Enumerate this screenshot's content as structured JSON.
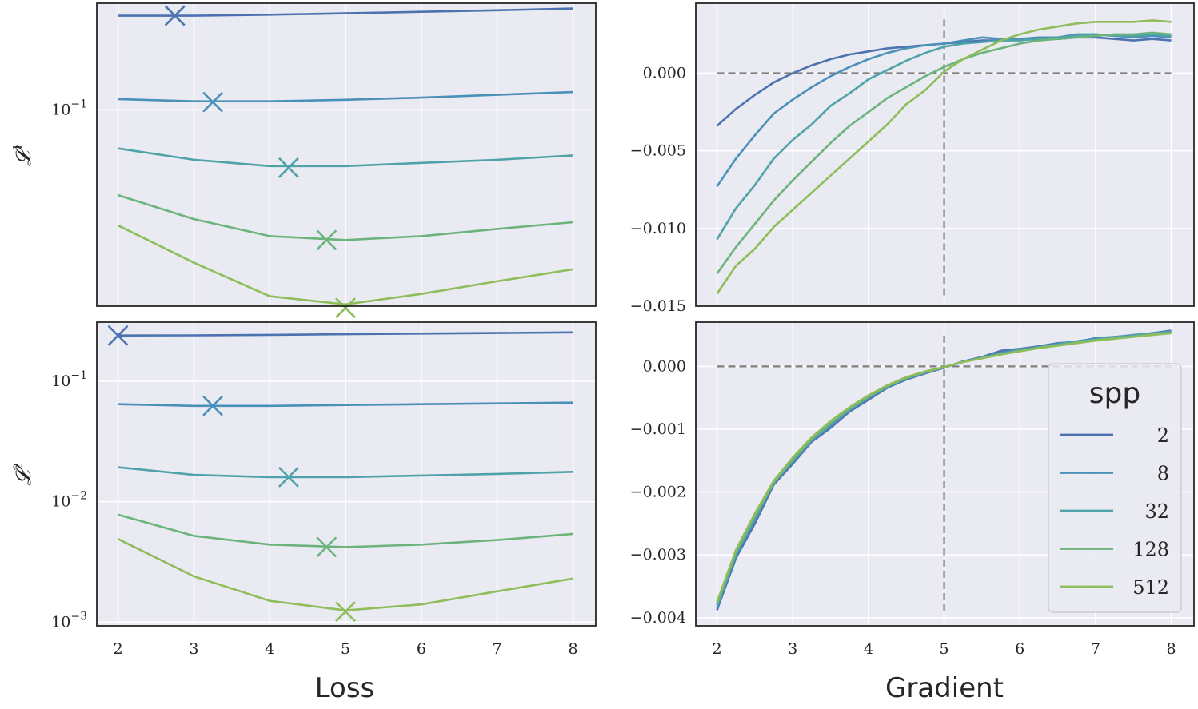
{
  "chart_data": [
    {
      "type": "line",
      "name": "top-left",
      "ylabel": "𝓛",
      "ylabel_sup": "1",
      "yscale": "log",
      "ylim": [
        0.0095,
        0.36
      ],
      "xlim": [
        1.72,
        8.3
      ],
      "xticks": [
        2,
        3,
        4,
        5,
        6,
        7,
        8
      ],
      "show_xticks": false,
      "yticks": [
        {
          "value": 0.1,
          "label": "10",
          "sup": "−1"
        }
      ],
      "x": [
        2,
        3,
        4,
        5,
        6,
        7,
        8
      ],
      "series": [
        {
          "name": "2",
          "values": [
            0.31,
            0.31,
            0.314,
            0.319,
            0.325,
            0.331,
            0.338
          ],
          "min": {
            "x": 2.75,
            "y": 0.31
          }
        },
        {
          "name": "8",
          "values": [
            0.114,
            0.111,
            0.111,
            0.113,
            0.116,
            0.12,
            0.124
          ],
          "min": {
            "x": 3.25,
            "y": 0.11
          }
        },
        {
          "name": "32",
          "values": [
            0.063,
            0.055,
            0.051,
            0.051,
            0.053,
            0.055,
            0.058
          ],
          "min": {
            "x": 4.25,
            "y": 0.05
          }
        },
        {
          "name": "128",
          "values": [
            0.036,
            0.027,
            0.022,
            0.021,
            0.022,
            0.024,
            0.026
          ],
          "min": {
            "x": 4.75,
            "y": 0.021
          }
        },
        {
          "name": "512",
          "values": [
            0.025,
            0.016,
            0.0107,
            0.0097,
            0.011,
            0.0128,
            0.0148
          ],
          "min": {
            "x": 5.0,
            "y": 0.0093
          }
        }
      ]
    },
    {
      "type": "line",
      "name": "top-right",
      "yscale": "linear",
      "ylim": [
        -0.015,
        0.0045
      ],
      "xlim": [
        1.72,
        8.3
      ],
      "xticks": [
        2,
        3,
        4,
        5,
        6,
        7,
        8
      ],
      "show_xticks": false,
      "yticks": [
        {
          "value": 0.0,
          "label": "0.000"
        },
        {
          "value": -0.005,
          "label": "−0.005"
        },
        {
          "value": -0.01,
          "label": "−0.010"
        },
        {
          "value": -0.015,
          "label": "−0.015"
        }
      ],
      "hline": 0,
      "vline": 5,
      "vline_range": [
        -0.0143,
        0.0035
      ],
      "x": [
        2,
        2.25,
        2.5,
        2.75,
        3,
        3.25,
        3.5,
        3.75,
        4,
        4.25,
        4.5,
        4.75,
        5,
        5.25,
        5.5,
        5.75,
        6,
        6.25,
        6.5,
        6.75,
        7,
        7.25,
        7.5,
        7.75,
        8
      ],
      "series": [
        {
          "name": "2",
          "values": [
            -0.0034,
            -0.0023,
            -0.0014,
            -0.0006,
            0.0,
            0.0005,
            0.0009,
            0.0012,
            0.0014,
            0.0016,
            0.0017,
            0.0018,
            0.0019,
            0.002,
            0.0021,
            0.0021,
            0.0022,
            0.0022,
            0.0022,
            0.0023,
            0.0023,
            0.0022,
            0.0021,
            0.0022,
            0.0021
          ]
        },
        {
          "name": "8",
          "values": [
            -0.0073,
            -0.0055,
            -0.004,
            -0.0026,
            -0.0017,
            -0.0009,
            -0.0002,
            0.0004,
            0.0009,
            0.0013,
            0.0016,
            0.0018,
            0.0019,
            0.0021,
            0.0023,
            0.0022,
            0.0022,
            0.0023,
            0.0023,
            0.0025,
            0.0025,
            0.0024,
            0.0023,
            0.0024,
            0.0023
          ]
        },
        {
          "name": "32",
          "values": [
            -0.0107,
            -0.0087,
            -0.0072,
            -0.0055,
            -0.0043,
            -0.0033,
            -0.0021,
            -0.0013,
            -0.0004,
            0.0002,
            0.0008,
            0.0013,
            0.0017,
            0.0019,
            0.002,
            0.0021,
            0.0021,
            0.0022,
            0.0023,
            0.0024,
            0.0025,
            0.0024,
            0.0024,
            0.0025,
            0.0024
          ]
        },
        {
          "name": "128",
          "values": [
            -0.0129,
            -0.0112,
            -0.0097,
            -0.0082,
            -0.0069,
            -0.0057,
            -0.0045,
            -0.0034,
            -0.0025,
            -0.0016,
            -0.0009,
            -0.0002,
            0.0004,
            0.0009,
            0.0013,
            0.0016,
            0.0019,
            0.0021,
            0.0022,
            0.0023,
            0.0024,
            0.0025,
            0.0025,
            0.0026,
            0.0025
          ]
        },
        {
          "name": "512",
          "values": [
            -0.0142,
            -0.0124,
            -0.0113,
            -0.0099,
            -0.0088,
            -0.0077,
            -0.0066,
            -0.0055,
            -0.0044,
            -0.0033,
            -0.002,
            -0.0011,
            0.0001,
            0.0009,
            0.0015,
            0.0021,
            0.0025,
            0.0028,
            0.003,
            0.0032,
            0.0033,
            0.0033,
            0.0033,
            0.0034,
            0.0033
          ]
        }
      ]
    },
    {
      "type": "line",
      "name": "bottom-left",
      "ylabel": "𝓛",
      "ylabel_sup": "2",
      "yscale": "log",
      "ylim": [
        0.00093,
        0.31
      ],
      "xlim": [
        1.72,
        8.3
      ],
      "xticks": [
        2,
        3,
        4,
        5,
        6,
        7,
        8
      ],
      "show_xticks": true,
      "yticks": [
        {
          "value": 0.1,
          "label": "10",
          "sup": "−1"
        },
        {
          "value": 0.01,
          "label": "10",
          "sup": "−2"
        },
        {
          "value": 0.001,
          "label": "10",
          "sup": "−3"
        }
      ],
      "x": [
        2,
        3,
        4,
        5,
        6,
        7,
        8
      ],
      "series": [
        {
          "name": "2",
          "values": [
            0.24,
            0.241,
            0.243,
            0.246,
            0.249,
            0.252,
            0.255
          ],
          "min": {
            "x": 2.0,
            "y": 0.24
          }
        },
        {
          "name": "8",
          "values": [
            0.0645,
            0.0625,
            0.0625,
            0.0635,
            0.0645,
            0.0655,
            0.0665
          ],
          "min": {
            "x": 3.25,
            "y": 0.0625
          }
        },
        {
          "name": "32",
          "values": [
            0.0193,
            0.0167,
            0.016,
            0.016,
            0.0165,
            0.017,
            0.0177
          ],
          "min": {
            "x": 4.25,
            "y": 0.016
          }
        },
        {
          "name": "128",
          "values": [
            0.0078,
            0.0052,
            0.0044,
            0.0042,
            0.0044,
            0.0048,
            0.0054
          ],
          "min": {
            "x": 4.75,
            "y": 0.0042
          }
        },
        {
          "name": "512",
          "values": [
            0.0049,
            0.0024,
            0.0015,
            0.00125,
            0.0014,
            0.0018,
            0.0023
          ],
          "min": {
            "x": 5.0,
            "y": 0.00122
          }
        }
      ]
    },
    {
      "type": "line",
      "name": "bottom-right",
      "yscale": "linear",
      "ylim": [
        -0.00413,
        0.000705
      ],
      "xlim": [
        1.72,
        8.3
      ],
      "xticks": [
        2,
        3,
        4,
        5,
        6,
        7,
        8
      ],
      "show_xticks": true,
      "yticks": [
        {
          "value": 0.0,
          "label": "0.000"
        },
        {
          "value": -0.001,
          "label": "−0.001"
        },
        {
          "value": -0.002,
          "label": "−0.002"
        },
        {
          "value": -0.003,
          "label": "−0.003"
        },
        {
          "value": -0.004,
          "label": "−0.004"
        }
      ],
      "hline": 0,
      "vline": 5,
      "vline_range": [
        -0.0039,
        0.00055
      ],
      "x": [
        2,
        2.25,
        2.5,
        2.75,
        3,
        3.25,
        3.5,
        3.75,
        4,
        4.25,
        4.5,
        4.75,
        5,
        5.25,
        5.5,
        5.75,
        6,
        6.25,
        6.5,
        6.75,
        7,
        7.25,
        7.5,
        7.75,
        8
      ],
      "series": [
        {
          "name": "2",
          "values": [
            -0.00388,
            -0.00305,
            -0.0025,
            -0.00188,
            -0.00155,
            -0.0012,
            -0.00098,
            -0.00072,
            -0.00053,
            -0.00034,
            -0.00021,
            -0.00011,
            -2e-05,
            8e-05,
            0.00015,
            0.00025,
            0.00028,
            0.00032,
            0.00037,
            0.00039,
            0.00045,
            0.00047,
            0.00049,
            0.00053,
            0.00057
          ]
        },
        {
          "name": "8",
          "values": [
            -0.00385,
            -0.003,
            -0.00245,
            -0.00185,
            -0.00152,
            -0.00118,
            -0.00095,
            -0.0007,
            -0.0005,
            -0.00033,
            -0.0002,
            -0.0001,
            -1e-05,
            7e-05,
            0.00014,
            0.00022,
            0.00027,
            0.00031,
            0.00036,
            0.0004,
            0.00044,
            0.00047,
            0.0005,
            0.00053,
            0.00056
          ]
        },
        {
          "name": "32",
          "values": [
            -0.0038,
            -0.00298,
            -0.0024,
            -0.00185,
            -0.0015,
            -0.00117,
            -0.00092,
            -0.00068,
            -0.00049,
            -0.00032,
            -0.00019,
            -9e-05,
            -1e-05,
            7e-05,
            0.00014,
            0.0002,
            0.00026,
            0.0003,
            0.00035,
            0.00039,
            0.00043,
            0.00046,
            0.00049,
            0.00052,
            0.00055
          ]
        },
        {
          "name": "128",
          "values": [
            -0.00378,
            -0.00295,
            -0.00238,
            -0.00185,
            -0.00148,
            -0.00115,
            -0.0009,
            -0.00067,
            -0.00048,
            -0.00031,
            -0.00018,
            -9e-05,
            -1e-05,
            7e-05,
            0.00013,
            0.00019,
            0.00025,
            0.0003,
            0.00034,
            0.00038,
            0.00042,
            0.00045,
            0.00048,
            0.00051,
            0.00054
          ]
        },
        {
          "name": "512",
          "values": [
            -0.00375,
            -0.00292,
            -0.00234,
            -0.00182,
            -0.00145,
            -0.00113,
            -0.00087,
            -0.00065,
            -0.00046,
            -0.0003,
            -0.00017,
            -8e-05,
            -1e-05,
            7e-05,
            0.00013,
            0.00019,
            0.00024,
            0.00029,
            0.00033,
            0.00037,
            0.00041,
            0.00044,
            0.00047,
            0.0005,
            0.00053
          ]
        }
      ]
    }
  ],
  "xlabels": {
    "left": "Loss",
    "right": "Gradient"
  },
  "legend": {
    "title": "spp",
    "entries": [
      "2",
      "8",
      "32",
      "128",
      "512"
    ],
    "placement": "lower-right of bottom-right panel"
  },
  "colors": {
    "series": [
      "#4c72b0",
      "#4a90b8",
      "#4fa3a8",
      "#6bb47c",
      "#8fbd5a"
    ],
    "panel_bg": "#eaeaf2",
    "grid": "#ffffff",
    "refline": "#808080",
    "frame": "#262626"
  }
}
